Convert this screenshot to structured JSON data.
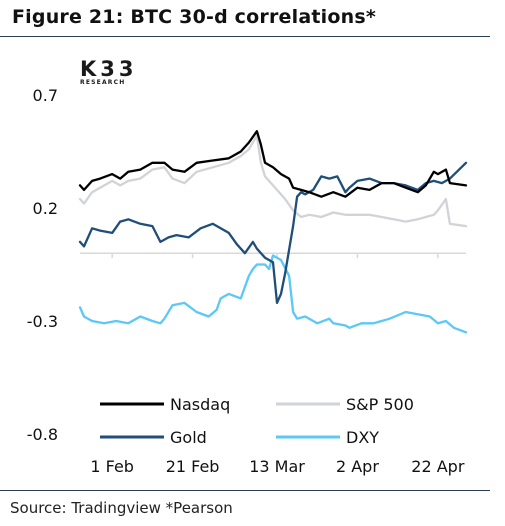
{
  "title": "Figure 21: BTC 30-d correlations*",
  "logo": {
    "main": "K33",
    "sub": "RESEARCH"
  },
  "source": "Source: Tradingview *Pearson",
  "chart_data": {
    "type": "line",
    "ylim": [
      -0.8,
      0.7
    ],
    "yticks": [
      0.7,
      0.2,
      -0.3,
      -0.8
    ],
    "ytick_labels": [
      "0.7",
      "0.2",
      "-0.3",
      "-0.8"
    ],
    "x_start": "2024-01-24",
    "x_end": "2024-04-29",
    "xticks": [
      "2024-02-01",
      "2024-02-21",
      "2024-03-13",
      "2024-04-02",
      "2024-04-22"
    ],
    "xtick_labels": [
      "1 Feb",
      "21 Feb",
      "13 Mar",
      "2 Apr",
      "22 Apr"
    ],
    "grid": false,
    "legend_position": "bottom",
    "series": [
      {
        "name": "Nasdaq",
        "color": "#000000",
        "points": [
          [
            "2024-01-24",
            0.3
          ],
          [
            "2024-01-25",
            0.28
          ],
          [
            "2024-01-27",
            0.32
          ],
          [
            "2024-01-29",
            0.33
          ],
          [
            "2024-02-01",
            0.35
          ],
          [
            "2024-02-03",
            0.33
          ],
          [
            "2024-02-05",
            0.36
          ],
          [
            "2024-02-08",
            0.37
          ],
          [
            "2024-02-11",
            0.4
          ],
          [
            "2024-02-14",
            0.4
          ],
          [
            "2024-02-16",
            0.37
          ],
          [
            "2024-02-19",
            0.36
          ],
          [
            "2024-02-22",
            0.4
          ],
          [
            "2024-02-26",
            0.41
          ],
          [
            "2024-03-01",
            0.42
          ],
          [
            "2024-03-04",
            0.45
          ],
          [
            "2024-03-06",
            0.49
          ],
          [
            "2024-03-08",
            0.54
          ],
          [
            "2024-03-09",
            0.48
          ],
          [
            "2024-03-10",
            0.4
          ],
          [
            "2024-03-12",
            0.38
          ],
          [
            "2024-03-14",
            0.35
          ],
          [
            "2024-03-16",
            0.33
          ],
          [
            "2024-03-17",
            0.29
          ],
          [
            "2024-03-19",
            0.28
          ],
          [
            "2024-03-21",
            0.27
          ],
          [
            "2024-03-24",
            0.25
          ],
          [
            "2024-03-27",
            0.27
          ],
          [
            "2024-03-30",
            0.25
          ],
          [
            "2024-04-02",
            0.29
          ],
          [
            "2024-04-05",
            0.28
          ],
          [
            "2024-04-08",
            0.31
          ],
          [
            "2024-04-11",
            0.31
          ],
          [
            "2024-04-14",
            0.29
          ],
          [
            "2024-04-17",
            0.27
          ],
          [
            "2024-04-19",
            0.3
          ],
          [
            "2024-04-21",
            0.36
          ],
          [
            "2024-04-22",
            0.35
          ],
          [
            "2024-04-24",
            0.37
          ],
          [
            "2024-04-25",
            0.31
          ],
          [
            "2024-04-29",
            0.3
          ]
        ]
      },
      {
        "name": "S&P 500",
        "color": "#d0d3d8",
        "points": [
          [
            "2024-01-24",
            0.24
          ],
          [
            "2024-01-25",
            0.22
          ],
          [
            "2024-01-27",
            0.27
          ],
          [
            "2024-01-29",
            0.29
          ],
          [
            "2024-02-01",
            0.32
          ],
          [
            "2024-02-03",
            0.3
          ],
          [
            "2024-02-05",
            0.32
          ],
          [
            "2024-02-08",
            0.33
          ],
          [
            "2024-02-11",
            0.37
          ],
          [
            "2024-02-14",
            0.38
          ],
          [
            "2024-02-16",
            0.33
          ],
          [
            "2024-02-19",
            0.31
          ],
          [
            "2024-02-22",
            0.36
          ],
          [
            "2024-02-26",
            0.38
          ],
          [
            "2024-03-01",
            0.4
          ],
          [
            "2024-03-04",
            0.43
          ],
          [
            "2024-03-06",
            0.46
          ],
          [
            "2024-03-08",
            0.52
          ],
          [
            "2024-03-09",
            0.4
          ],
          [
            "2024-03-10",
            0.34
          ],
          [
            "2024-03-12",
            0.3
          ],
          [
            "2024-03-14",
            0.26
          ],
          [
            "2024-03-15",
            0.24
          ],
          [
            "2024-03-17",
            0.19
          ],
          [
            "2024-03-19",
            0.16
          ],
          [
            "2024-03-21",
            0.17
          ],
          [
            "2024-03-24",
            0.16
          ],
          [
            "2024-03-27",
            0.18
          ],
          [
            "2024-03-30",
            0.17
          ],
          [
            "2024-04-02",
            0.17
          ],
          [
            "2024-04-05",
            0.17
          ],
          [
            "2024-04-08",
            0.16
          ],
          [
            "2024-04-11",
            0.15
          ],
          [
            "2024-04-14",
            0.14
          ],
          [
            "2024-04-17",
            0.15
          ],
          [
            "2024-04-19",
            0.16
          ],
          [
            "2024-04-21",
            0.17
          ],
          [
            "2024-04-22",
            0.19
          ],
          [
            "2024-04-24",
            0.24
          ],
          [
            "2024-04-25",
            0.13
          ],
          [
            "2024-04-29",
            0.12
          ]
        ]
      },
      {
        "name": "Gold",
        "color": "#1f4e79",
        "points": [
          [
            "2024-01-24",
            0.05
          ],
          [
            "2024-01-25",
            0.03
          ],
          [
            "2024-01-27",
            0.11
          ],
          [
            "2024-01-29",
            0.1
          ],
          [
            "2024-02-01",
            0.09
          ],
          [
            "2024-02-03",
            0.14
          ],
          [
            "2024-02-05",
            0.15
          ],
          [
            "2024-02-08",
            0.13
          ],
          [
            "2024-02-11",
            0.12
          ],
          [
            "2024-02-13",
            0.05
          ],
          [
            "2024-02-15",
            0.07
          ],
          [
            "2024-02-17",
            0.08
          ],
          [
            "2024-02-20",
            0.07
          ],
          [
            "2024-02-23",
            0.11
          ],
          [
            "2024-02-26",
            0.13
          ],
          [
            "2024-03-01",
            0.09
          ],
          [
            "2024-03-03",
            0.04
          ],
          [
            "2024-03-05",
            0.0
          ],
          [
            "2024-03-07",
            0.05
          ],
          [
            "2024-03-08",
            0.02
          ],
          [
            "2024-03-10",
            -0.02
          ],
          [
            "2024-03-12",
            -0.04
          ],
          [
            "2024-03-13",
            -0.22
          ],
          [
            "2024-03-14",
            -0.18
          ],
          [
            "2024-03-15",
            -0.09
          ],
          [
            "2024-03-17",
            0.12
          ],
          [
            "2024-03-18",
            0.25
          ],
          [
            "2024-03-19",
            0.27
          ],
          [
            "2024-03-20",
            0.26
          ],
          [
            "2024-03-22",
            0.28
          ],
          [
            "2024-03-24",
            0.34
          ],
          [
            "2024-03-26",
            0.33
          ],
          [
            "2024-03-28",
            0.34
          ],
          [
            "2024-03-30",
            0.27
          ],
          [
            "2024-03-31",
            0.29
          ],
          [
            "2024-04-02",
            0.32
          ],
          [
            "2024-04-05",
            0.33
          ],
          [
            "2024-04-08",
            0.31
          ],
          [
            "2024-04-11",
            0.31
          ],
          [
            "2024-04-14",
            0.3
          ],
          [
            "2024-04-17",
            0.28
          ],
          [
            "2024-04-19",
            0.31
          ],
          [
            "2024-04-21",
            0.32
          ],
          [
            "2024-04-23",
            0.31
          ],
          [
            "2024-04-25",
            0.33
          ],
          [
            "2024-04-29",
            0.4
          ]
        ]
      },
      {
        "name": "DXY",
        "color": "#5bc8f5",
        "points": [
          [
            "2024-01-24",
            -0.24
          ],
          [
            "2024-01-25",
            -0.28
          ],
          [
            "2024-01-27",
            -0.3
          ],
          [
            "2024-01-30",
            -0.31
          ],
          [
            "2024-02-02",
            -0.3
          ],
          [
            "2024-02-05",
            -0.31
          ],
          [
            "2024-02-08",
            -0.28
          ],
          [
            "2024-02-11",
            -0.3
          ],
          [
            "2024-02-13",
            -0.31
          ],
          [
            "2024-02-14",
            -0.29
          ],
          [
            "2024-02-16",
            -0.23
          ],
          [
            "2024-02-19",
            -0.22
          ],
          [
            "2024-02-22",
            -0.26
          ],
          [
            "2024-02-25",
            -0.28
          ],
          [
            "2024-02-27",
            -0.25
          ],
          [
            "2024-02-28",
            -0.2
          ],
          [
            "2024-03-01",
            -0.18
          ],
          [
            "2024-03-04",
            -0.2
          ],
          [
            "2024-03-06",
            -0.1
          ],
          [
            "2024-03-07",
            -0.07
          ],
          [
            "2024-03-08",
            -0.05
          ],
          [
            "2024-03-10",
            -0.05
          ],
          [
            "2024-03-11",
            -0.07
          ],
          [
            "2024-03-12",
            -0.01
          ],
          [
            "2024-03-14",
            -0.03
          ],
          [
            "2024-03-16",
            -0.1
          ],
          [
            "2024-03-17",
            -0.26
          ],
          [
            "2024-03-18",
            -0.29
          ],
          [
            "2024-03-20",
            -0.28
          ],
          [
            "2024-03-23",
            -0.31
          ],
          [
            "2024-03-26",
            -0.29
          ],
          [
            "2024-03-27",
            -0.31
          ],
          [
            "2024-03-30",
            -0.32
          ],
          [
            "2024-03-31",
            -0.33
          ],
          [
            "2024-04-03",
            -0.31
          ],
          [
            "2024-04-06",
            -0.31
          ],
          [
            "2024-04-10",
            -0.29
          ],
          [
            "2024-04-14",
            -0.26
          ],
          [
            "2024-04-17",
            -0.27
          ],
          [
            "2024-04-20",
            -0.28
          ],
          [
            "2024-04-22",
            -0.31
          ],
          [
            "2024-04-24",
            -0.3
          ],
          [
            "2024-04-26",
            -0.33
          ],
          [
            "2024-04-29",
            -0.35
          ]
        ]
      }
    ]
  }
}
